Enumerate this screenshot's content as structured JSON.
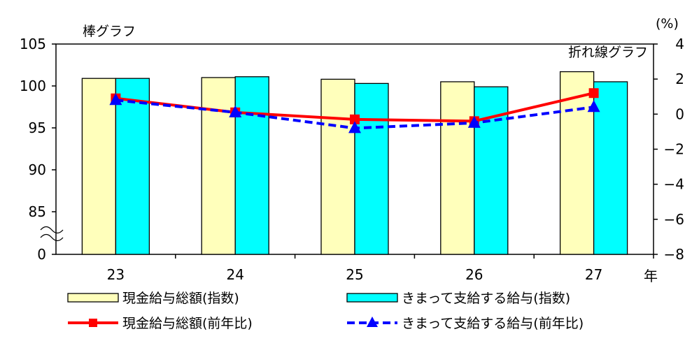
{
  "chart_data": {
    "type": "bar",
    "title": "",
    "categories": [
      "23",
      "24",
      "25",
      "26",
      "27"
    ],
    "x_unit": "年",
    "left_axis": {
      "label": "棒グラフ",
      "ticks": [
        "105",
        "100",
        "95",
        "90",
        "85",
        "0"
      ],
      "range": [
        85,
        105
      ],
      "axis_break": true
    },
    "right_axis": {
      "label": "折れ線グラフ",
      "unit": "(%)",
      "ticks": [
        "4",
        "2",
        "0",
        "−2",
        "−4",
        "−6",
        "−8"
      ],
      "range": [
        -8,
        4
      ]
    },
    "series": [
      {
        "name": "現金給与総額(指数)",
        "kind": "bar",
        "axis": "left",
        "color": "#FFFFBB",
        "values": [
          100.9,
          101.0,
          100.8,
          100.5,
          101.7
        ]
      },
      {
        "name": "きまって支給する給与(指数)",
        "kind": "bar",
        "axis": "left",
        "color": "#00FFFF",
        "values": [
          100.9,
          101.1,
          100.3,
          99.9,
          100.5
        ]
      },
      {
        "name": "現金給与総額(前年比)",
        "kind": "line",
        "axis": "right",
        "color": "#FF0000",
        "marker": "square",
        "dash": "solid",
        "values": [
          0.9,
          0.1,
          -0.3,
          -0.4,
          1.2
        ]
      },
      {
        "name": "きまって支給する給与(前年比)",
        "kind": "line",
        "axis": "right",
        "color": "#0000FF",
        "marker": "triangle",
        "dash": "dashed",
        "values": [
          0.8,
          0.1,
          -0.8,
          -0.5,
          0.4
        ]
      }
    ],
    "grid": false,
    "legend_position": "bottom"
  }
}
